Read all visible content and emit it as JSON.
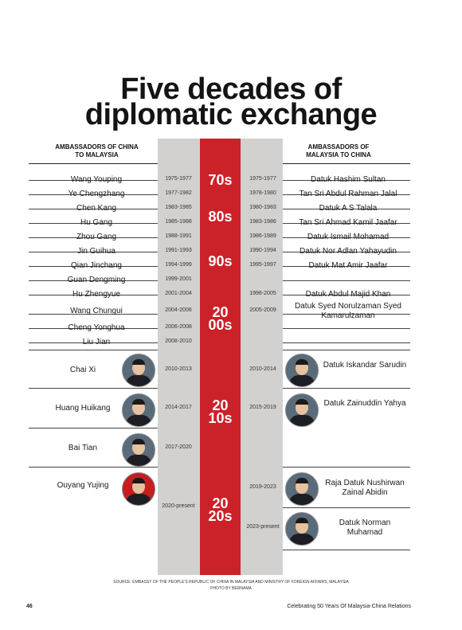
{
  "title_line1": "Five decades of",
  "title_line2": "diplomatic exchange",
  "header_left": "AMBASSADORS OF CHINA TO MALAYSIA",
  "header_right": "AMBASSADORS OF MALAYSIA TO CHINA",
  "decades": [
    "70s",
    "80s",
    "90s",
    "20 00s",
    "20 10s",
    "20 20s"
  ],
  "china_ambassadors": [
    {
      "name": "Wang Youping",
      "years": "1975-1977"
    },
    {
      "name": "Ye Chengzhang",
      "years": "1977-1982"
    },
    {
      "name": "Chen Kang",
      "years": "1983-1985"
    },
    {
      "name": "Hu Gang",
      "years": "1985-1988"
    },
    {
      "name": "Zhou Gang",
      "years": "1988-1991"
    },
    {
      "name": "Jin Guihua",
      "years": "1991-1993"
    },
    {
      "name": "Qian Jinchang",
      "years": "1994-1999"
    },
    {
      "name": "Guan Dengming",
      "years": "1999-2001"
    },
    {
      "name": "Hu Zhengyue",
      "years": "2001-2004"
    },
    {
      "name": "Wang Chungui",
      "years": "2004-2006"
    },
    {
      "name": "Cheng Yonghua",
      "years": "2006-2008"
    },
    {
      "name": "Liu Jian",
      "years": "2008-2010"
    },
    {
      "name": "Chai Xi",
      "years": "2010-2013"
    },
    {
      "name": "Huang Huikang",
      "years": "2014-2017"
    },
    {
      "name": "Bai Tian",
      "years": "2017-2020"
    },
    {
      "name": "Ouyang Yujing",
      "years": "2020-present"
    }
  ],
  "malaysia_ambassadors": [
    {
      "name": "Datuk Hashim Sultan",
      "years": "1975-1977"
    },
    {
      "name": "Tan Sri Abdul Rahman Jalal",
      "years": "1978-1980"
    },
    {
      "name": "Datuk A S Talala",
      "years": "1980-1983"
    },
    {
      "name": "Tan Sri Ahmad Kamil Jaafar",
      "years": "1983-1986"
    },
    {
      "name": "Datuk Ismail Mohamad",
      "years": "1986-1989"
    },
    {
      "name": "Datuk Nor Adlan Yahayudin",
      "years": "1990-1994"
    },
    {
      "name": "Datuk Mat Amir Jaafar",
      "years": "1995-1997"
    },
    {
      "name": "Datuk Abdul Majid Khan",
      "years": "1998-2005"
    },
    {
      "name": "Datuk Syed Norulzaman Syed Kamarulzaman",
      "years": "2005-2009"
    },
    {
      "name": "Datuk Iskandar Sarudin",
      "years": "2010-2014"
    },
    {
      "name": "Datuk Zainuddin Yahya",
      "years": "2015-2019"
    },
    {
      "name": "Raja Datuk Nushirwan Zainal Abidin",
      "years": "2019-2023"
    },
    {
      "name": "Datuk Norman Muhamad",
      "years": "2023-present"
    }
  ],
  "source": "SOURCE: EMBASSY OF THE PEOPLE'S REPUBLIC OF CHINA IN MALAYSIA AND MINISTRY OF FOREIGN AFFAIRS, MALAYSIA",
  "photo_credit": "PHOTO BY BERNAMA",
  "page_number": "46",
  "footer": "Celebrating 50 Years Of Malaysia-China Relations",
  "colors": {
    "accent_red": "#cb2229",
    "column_gray": "#d3d1cf"
  }
}
